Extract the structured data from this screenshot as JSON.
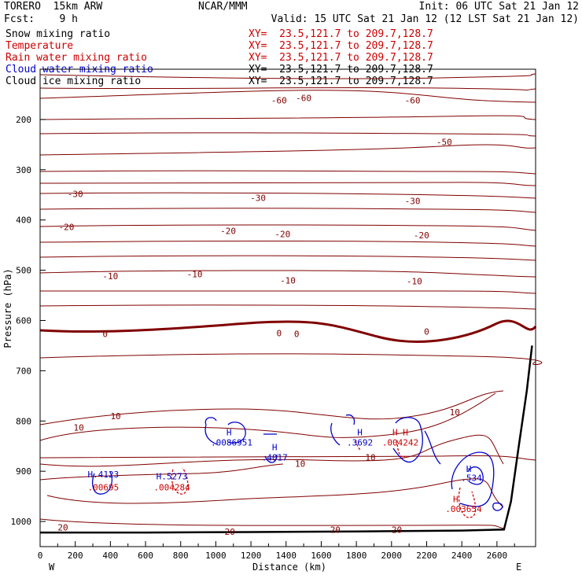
{
  "header": {
    "model": "TORERO  15km ARW",
    "center": "NCAR/MMM",
    "init": "Init: 06 UTC Sat 21 Jan 12",
    "fcst": "Fcst:    9 h",
    "valid": "Valid: 15 UTC Sat 21 Jan 12 (12 LST Sat 21 Jan 12)"
  },
  "fields": [
    {
      "name": "Snow mixing ratio",
      "xy": "XY=  23.5,121.7 to 209.7,128.7",
      "name_color": "#000000",
      "xy_color": "#cc0000"
    },
    {
      "name": "Temperature",
      "xy": "XY=  23.5,121.7 to 209.7,128.7",
      "name_color": "#cc0000",
      "xy_color": "#cc0000"
    },
    {
      "name": "Rain water mixing ratio",
      "xy": "XY=  23.5,121.7 to 209.7,128.7",
      "name_color": "#cc0000",
      "xy_color": "#cc0000"
    },
    {
      "name": "Cloud water mixing ratio",
      "xy": "XY=  23.5,121.7 to 209.7,128.7",
      "name_color": "#0000cc",
      "xy_color": "#000000"
    },
    {
      "name": "Cloud ice mixing ratio",
      "xy": "XY=  23.5,121.7 to 209.7,128.7",
      "name_color": "#000000",
      "xy_color": "#000000"
    }
  ],
  "colors": {
    "temperature": "#800000",
    "zero_isotherm": "#800000",
    "cloud_water": "#0000cc",
    "rain_water": "#cc0000",
    "terrain": "#000000"
  },
  "chart_data": {
    "type": "contour-cross-section",
    "xlabel": "Distance (km)",
    "ylabel": "Pressure (hPa)",
    "xlim": [
      0,
      2820
    ],
    "ylim": [
      1050,
      100
    ],
    "x_ticks": [
      0,
      200,
      400,
      600,
      800,
      1000,
      1200,
      1400,
      1600,
      1800,
      2000,
      2200,
      2400,
      2600
    ],
    "y_ticks": [
      200,
      300,
      400,
      500,
      600,
      700,
      800,
      900,
      1000
    ],
    "left_end_label": "W",
    "right_end_label": "E",
    "temperature_contour_labels": [
      {
        "x": 1360,
        "p": 162,
        "text": "-60"
      },
      {
        "x": 1500,
        "p": 157,
        "text": "-60"
      },
      {
        "x": 2120,
        "p": 162,
        "text": "-60"
      },
      {
        "x": 2300,
        "p": 245,
        "text": "-50"
      },
      {
        "x": 200,
        "p": 348,
        "text": "-30"
      },
      {
        "x": 1240,
        "p": 356,
        "text": "-30"
      },
      {
        "x": 2120,
        "p": 362,
        "text": "-30"
      },
      {
        "x": 150,
        "p": 414,
        "text": "-20"
      },
      {
        "x": 1070,
        "p": 422,
        "text": "-20"
      },
      {
        "x": 1380,
        "p": 428,
        "text": "-20"
      },
      {
        "x": 2170,
        "p": 430,
        "text": "-20"
      },
      {
        "x": 400,
        "p": 512,
        "text": "-10"
      },
      {
        "x": 880,
        "p": 508,
        "text": "-10"
      },
      {
        "x": 1410,
        "p": 520,
        "text": "-10"
      },
      {
        "x": 2130,
        "p": 522,
        "text": "-10"
      },
      {
        "x": 370,
        "p": 627,
        "text": "0"
      },
      {
        "x": 1360,
        "p": 625,
        "text": "0"
      },
      {
        "x": 1460,
        "p": 627,
        "text": "0"
      },
      {
        "x": 2200,
        "p": 622,
        "text": "0"
      },
      {
        "x": 430,
        "p": 790,
        "text": "10"
      },
      {
        "x": 220,
        "p": 813,
        "text": "10"
      },
      {
        "x": 1480,
        "p": 885,
        "text": "10"
      },
      {
        "x": 1880,
        "p": 872,
        "text": "10"
      },
      {
        "x": 2360,
        "p": 782,
        "text": "10"
      },
      {
        "x": 130,
        "p": 1012,
        "text": "20"
      },
      {
        "x": 1080,
        "p": 1020,
        "text": "20"
      },
      {
        "x": 1680,
        "p": 1016,
        "text": "20"
      },
      {
        "x": 2030,
        "p": 1016,
        "text": "20"
      }
    ],
    "maxima": [
      {
        "x": 360,
        "p": 906,
        "marker": "H",
        "value": ".4123",
        "color": "#0000cc"
      },
      {
        "x": 360,
        "p": 932,
        "marker": "",
        "value": ".00695",
        "color": "#cc0000"
      },
      {
        "x": 750,
        "p": 910,
        "marker": "H",
        "value": ".5273",
        "color": "#0000cc"
      },
      {
        "x": 750,
        "p": 932,
        "marker": "",
        "value": ".004284",
        "color": "#cc0000"
      },
      {
        "x": 1075,
        "p": 822,
        "marker": "H",
        "value": "",
        "color": "#0000cc"
      },
      {
        "x": 1090,
        "p": 843,
        "marker": "",
        "value": ".0086951",
        "color": "#0000cc"
      },
      {
        "x": 1335,
        "p": 852,
        "marker": "H",
        "value": "",
        "color": "#0000cc"
      },
      {
        "x": 1335,
        "p": 872,
        "marker": "",
        "value": ".4017",
        "color": "#0000cc"
      },
      {
        "x": 1820,
        "p": 822,
        "marker": "H",
        "value": "",
        "color": "#0000cc"
      },
      {
        "x": 1820,
        "p": 843,
        "marker": "",
        "value": ".3692",
        "color": "#0000cc"
      },
      {
        "x": 2050,
        "p": 822,
        "marker": "H H",
        "value": "",
        "color": "#cc0000"
      },
      {
        "x": 2050,
        "p": 843,
        "marker": "",
        "value": ".004242",
        "color": "#cc0000"
      },
      {
        "x": 2440,
        "p": 895,
        "marker": "H",
        "value": "",
        "color": "#0000cc"
      },
      {
        "x": 2455,
        "p": 913,
        "marker": "",
        "value": ".534",
        "color": "#0000cc"
      },
      {
        "x": 2365,
        "p": 955,
        "marker": "H",
        "value": "",
        "color": "#cc0000"
      },
      {
        "x": 2410,
        "p": 975,
        "marker": "",
        "value": ".003654",
        "color": "#cc0000"
      }
    ],
    "terrain_surface_pressure": [
      [
        0,
        1022
      ],
      [
        600,
        1022
      ],
      [
        1200,
        1021
      ],
      [
        1800,
        1020
      ],
      [
        2400,
        1018
      ],
      [
        2640,
        1016
      ],
      [
        2680,
        960
      ],
      [
        2720,
        860
      ],
      [
        2770,
        740
      ],
      [
        2800,
        650
      ]
    ]
  }
}
